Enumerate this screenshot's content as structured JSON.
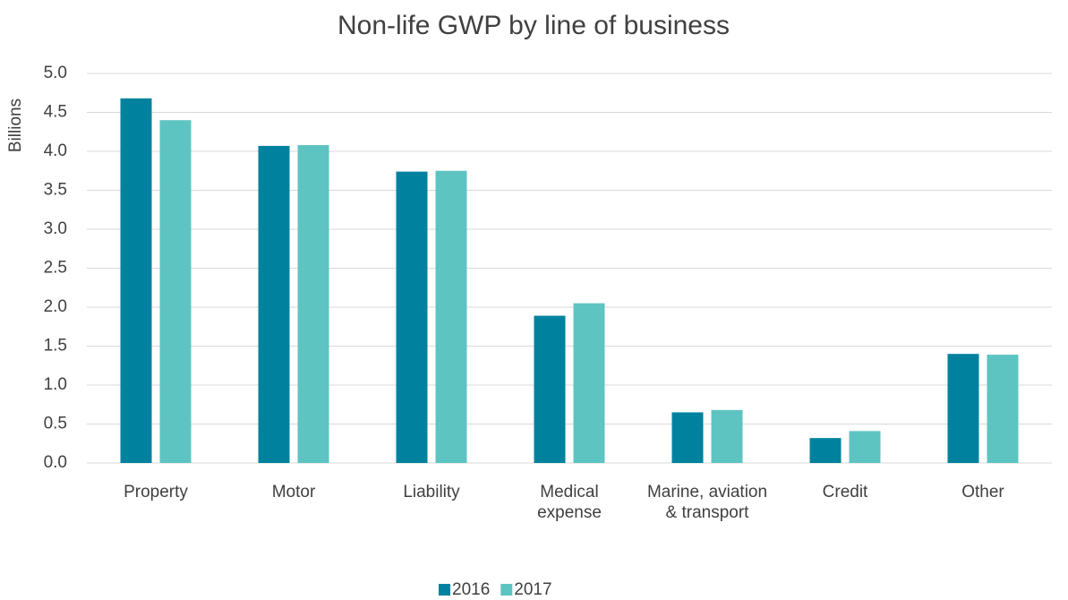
{
  "chart_data": {
    "type": "bar",
    "title": "Non-life GWP by line of business",
    "y_label": "Billions",
    "categories": [
      "Property",
      "Motor",
      "Liability",
      "Medical expense",
      "Marine, aviation & transport",
      "Credit",
      "Other"
    ],
    "series": [
      {
        "name": "2016",
        "color": "#00829f",
        "values": [
          4.68,
          4.07,
          3.74,
          1.89,
          0.65,
          0.32,
          1.4
        ]
      },
      {
        "name": "2017",
        "color": "#5ec4c1",
        "values": [
          4.4,
          4.08,
          3.75,
          2.05,
          0.68,
          0.41,
          1.39
        ]
      }
    ],
    "ylim": [
      0,
      5
    ],
    "yticks": [
      {
        "value": 0,
        "label": "0.0"
      },
      0.5,
      {
        "value": 1,
        "label": "1.0"
      },
      1.5,
      {
        "value": 2,
        "label": "2.0"
      },
      2.5,
      {
        "value": 3,
        "label": "3.0"
      },
      3.5,
      {
        "value": 4,
        "label": "4.0"
      },
      4.5,
      {
        "value": 5,
        "label": "5.0"
      }
    ],
    "grid": true,
    "legend": "bottom"
  }
}
